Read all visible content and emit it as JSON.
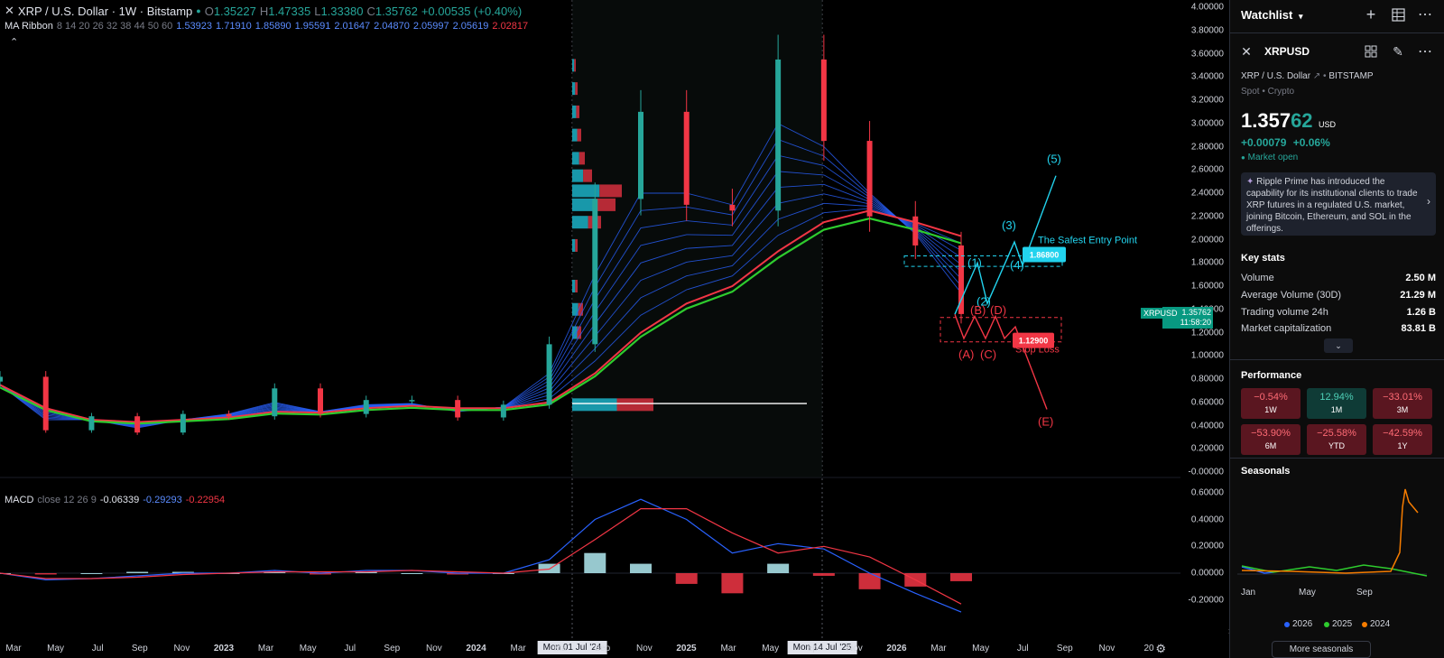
{
  "chart": {
    "symbol_title": "XRP / U.S. Dollar · 1W · Bitstamp",
    "ohlc": {
      "o_label": "O",
      "o": "1.35227",
      "h_label": "H",
      "h": "1.47335",
      "l_label": "L",
      "l": "1.33380",
      "c_label": "C",
      "c": "1.35762",
      "change": "+0.00535 (+0.40%)"
    },
    "ma_ribbon": {
      "label": "MA Ribbon",
      "lengths": "8 14 20 26 32 38 44 50 60",
      "values": [
        "1.53923",
        "1.71910",
        "1.85890",
        "1.95591",
        "2.01647",
        "2.04870",
        "2.05997",
        "2.05619",
        "2.02817"
      ]
    },
    "macd": {
      "label": "MACD",
      "params": "close 12 26 9",
      "v1": "-0.06339",
      "v2": "-0.29293",
      "v3": "-0.22954"
    },
    "price_ticks": [
      "4.00000",
      "3.80000",
      "3.60000",
      "3.40000",
      "3.20000",
      "3.00000",
      "2.80000",
      "2.60000",
      "2.40000",
      "2.20000",
      "2.00000",
      "1.80000",
      "1.60000",
      "1.40000",
      "1.20000",
      "1.00000",
      "0.80000",
      "0.60000",
      "0.40000",
      "0.20000",
      "-0.00000"
    ],
    "macd_ticks": [
      "0.60000",
      "0.40000",
      "0.20000",
      "0.00000",
      "-0.20000"
    ],
    "time_ticks": [
      {
        "label": "Mar",
        "bold": false
      },
      {
        "label": "May",
        "bold": false
      },
      {
        "label": "Jul",
        "bold": false
      },
      {
        "label": "Sep",
        "bold": false
      },
      {
        "label": "Nov",
        "bold": false
      },
      {
        "label": "2023",
        "bold": true
      },
      {
        "label": "Mar",
        "bold": false
      },
      {
        "label": "May",
        "bold": false
      },
      {
        "label": "Jul",
        "bold": false
      },
      {
        "label": "Sep",
        "bold": false
      },
      {
        "label": "Nov",
        "bold": false
      },
      {
        "label": "2024",
        "bold": true
      },
      {
        "label": "Mar",
        "bold": false
      },
      {
        "label": "Ma",
        "bold": false
      },
      {
        "label": "Sep",
        "bold": false
      },
      {
        "label": "Nov",
        "bold": false
      },
      {
        "label": "2025",
        "bold": true
      },
      {
        "label": "Mar",
        "bold": false
      },
      {
        "label": "May",
        "bold": false
      },
      {
        "label": "ep",
        "bold": false
      },
      {
        "label": "Nov",
        "bold": false
      },
      {
        "label": "2026",
        "bold": true
      },
      {
        "label": "Mar",
        "bold": false
      },
      {
        "label": "May",
        "bold": false
      },
      {
        "label": "Jul",
        "bold": false
      },
      {
        "label": "Sep",
        "bold": false
      },
      {
        "label": "Nov",
        "bold": false
      },
      {
        "label": "20",
        "bold": false
      }
    ],
    "crosshair_dates": [
      "Mon 01 Jul '24",
      "Mon 14 Jul '25"
    ],
    "current_price_label": "XRPUSD",
    "current_price": "1.35762",
    "countdown": "11:58:20",
    "annotations": {
      "wave_1": "(1)",
      "wave_2": "(2)",
      "wave_3": "(3)",
      "wave_4": "(4)",
      "wave_5": "(5)",
      "wave_a": "(A)",
      "wave_b": "(B)",
      "wave_c": "(C)",
      "wave_d": "(D)",
      "wave_e": "(E)",
      "entry_text": "The Safest Entry Point",
      "entry_price": "1.86800",
      "stop_text": "Stop Loss",
      "stop_price": "1.12900"
    },
    "colors": {
      "up": "#26a69a",
      "down": "#f23645",
      "ma_green": "#2ecc2e",
      "ma_red": "#f23645",
      "ma_blue": "#2962ff",
      "wave_cyan": "#22d3ee",
      "wave_red": "#f23645"
    }
  },
  "chart_data": {
    "type": "candlestick",
    "title": "XRP / U.S. Dollar · 1W · Bitstamp",
    "ylim": [
      0,
      4.0
    ],
    "macd_ylim": [
      -0.3,
      0.65
    ],
    "key_prices": {
      "peak_2025_01": 3.4,
      "peak_2025_07": 3.66,
      "current": 1.35762,
      "low_2024_11": 0.49
    },
    "dates": [
      "2022-03",
      "2022-06",
      "2022-09",
      "2022-12",
      "2023-03",
      "2023-06",
      "2023-07",
      "2023-09",
      "2023-12",
      "2024-03",
      "2024-06",
      "2024-09",
      "2024-11",
      "2024-12",
      "2025-01",
      "2025-03",
      "2025-05",
      "2025-07",
      "2025-09",
      "2025-11",
      "2026-01",
      "2026-02"
    ],
    "close": [
      0.82,
      0.36,
      0.48,
      0.34,
      0.5,
      0.48,
      0.72,
      0.5,
      0.62,
      0.62,
      0.47,
      0.58,
      1.1,
      2.35,
      3.1,
      2.3,
      2.25,
      3.55,
      2.85,
      2.2,
      1.95,
      1.36
    ],
    "ma_fast": [
      0.75,
      0.45,
      0.45,
      0.38,
      0.45,
      0.5,
      0.6,
      0.52,
      0.58,
      0.59,
      0.52,
      0.56,
      0.85,
      1.7,
      2.4,
      2.4,
      2.3,
      3.0,
      2.8,
      2.4,
      2.05,
      1.54
    ],
    "ma_slow": [
      0.75,
      0.55,
      0.45,
      0.43,
      0.45,
      0.47,
      0.52,
      0.51,
      0.55,
      0.57,
      0.55,
      0.55,
      0.6,
      0.85,
      1.2,
      1.45,
      1.6,
      1.9,
      2.15,
      2.25,
      2.15,
      2.03
    ],
    "macd_line": [
      0.0,
      -0.05,
      -0.04,
      -0.02,
      0.0,
      0.0,
      0.02,
      0.0,
      0.02,
      0.02,
      0.0,
      0.0,
      0.1,
      0.4,
      0.55,
      0.4,
      0.15,
      0.22,
      0.18,
      0.0,
      -0.15,
      -0.29
    ],
    "signal_line": [
      0.0,
      -0.04,
      -0.04,
      -0.03,
      -0.01,
      0.0,
      0.01,
      0.01,
      0.01,
      0.02,
      0.01,
      0.0,
      0.03,
      0.25,
      0.48,
      0.48,
      0.3,
      0.15,
      0.2,
      0.12,
      -0.05,
      -0.23
    ],
    "projection_waves": [
      {
        "label": "(1)",
        "price": 1.8
      },
      {
        "label": "(2)",
        "price": 1.45
      },
      {
        "label": "(3)",
        "price": 1.98
      },
      {
        "label": "(4)",
        "price": 1.78
      },
      {
        "label": "(5)",
        "price": 2.55
      },
      {
        "label": "(E)",
        "price": 0.55
      }
    ]
  },
  "sidebar": {
    "watchlist_label": "Watchlist",
    "symbol": "XRPUSD",
    "description": "XRP / U.S. Dollar",
    "exchange": "BITSTAMP",
    "market_type": "Spot • Crypto",
    "price_main": "1.357",
    "price_small": "62",
    "currency": "USD",
    "change_abs": "+0.00079",
    "change_pct": "+0.06%",
    "market_status": "Market open",
    "news": "Ripple Prime has introduced the capability for its institutional clients to trade XRP futures in a regulated U.S. market, joining Bitcoin, Ethereum, and SOL in the offerings.",
    "key_stats_title": "Key stats",
    "stats": [
      {
        "label": "Volume",
        "value": "2.50 M"
      },
      {
        "label": "Average Volume (30D)",
        "value": "21.29 M"
      },
      {
        "label": "Trading volume 24h",
        "value": "1.26 B"
      },
      {
        "label": "Market capitalization",
        "value": "83.81 B"
      }
    ],
    "performance_title": "Performance",
    "performance": [
      {
        "value": "−0.54%",
        "period": "1W",
        "positive": false
      },
      {
        "value": "12.94%",
        "period": "1M",
        "positive": true
      },
      {
        "value": "−33.01%",
        "period": "3M",
        "positive": false
      },
      {
        "value": "−53.90%",
        "period": "6M",
        "positive": false
      },
      {
        "value": "−25.58%",
        "period": "YTD",
        "positive": false
      },
      {
        "value": "−42.59%",
        "period": "1Y",
        "positive": false
      }
    ],
    "seasonals_title": "Seasonals",
    "seasonal_months": [
      "Jan",
      "May",
      "Sep"
    ],
    "seasonal_years": [
      {
        "year": "2026",
        "color": "#2962ff"
      },
      {
        "year": "2025",
        "color": "#2ecc2e"
      },
      {
        "year": "2024",
        "color": "#f57c00"
      }
    ],
    "more_seasonals": "More seasonals"
  }
}
